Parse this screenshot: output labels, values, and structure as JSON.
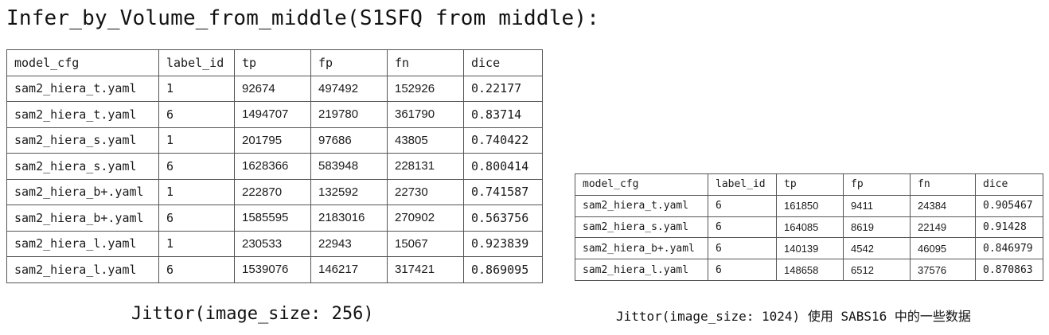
{
  "title": "Infer_by_Volume_from_middle(S1SFQ from middle):",
  "left_table": {
    "headers": [
      "model_cfg",
      "label_id",
      "tp",
      "fp",
      "fn",
      "dice"
    ],
    "rows": [
      [
        "sam2_hiera_t.yaml",
        "1",
        "92674",
        "497492",
        "152926",
        "0.22177"
      ],
      [
        "sam2_hiera_t.yaml",
        "6",
        "1494707",
        "219780",
        "361790",
        "0.83714"
      ],
      [
        "sam2_hiera_s.yaml",
        "1",
        "201795",
        "97686",
        "43805",
        "0.740422"
      ],
      [
        "sam2_hiera_s.yaml",
        "6",
        "1628366",
        "583948",
        "228131",
        "0.800414"
      ],
      [
        "sam2_hiera_b+.yaml",
        "1",
        "222870",
        "132592",
        "22730",
        "0.741587"
      ],
      [
        "sam2_hiera_b+.yaml",
        "6",
        "1585595",
        "2183016",
        "270902",
        "0.563756"
      ],
      [
        "sam2_hiera_l.yaml",
        "1",
        "230533",
        "22943",
        "15067",
        "0.923839"
      ],
      [
        "sam2_hiera_l.yaml",
        "6",
        "1539076",
        "146217",
        "317421",
        "0.869095"
      ]
    ]
  },
  "left_caption": "Jittor(image_size: 256)",
  "right_table": {
    "headers": [
      "model_cfg",
      "label_id",
      "tp",
      "fp",
      "fn",
      "dice"
    ],
    "rows": [
      [
        "sam2_hiera_t.yaml",
        "6",
        "161850",
        "9411",
        "24384",
        "0.905467"
      ],
      [
        "sam2_hiera_s.yaml",
        "6",
        "164085",
        "8619",
        "22149",
        "0.91428"
      ],
      [
        "sam2_hiera_b+.yaml",
        "6",
        "140139",
        "4542",
        "46095",
        "0.846979"
      ],
      [
        "sam2_hiera_l.yaml",
        "6",
        "148658",
        "6512",
        "37576",
        "0.870863"
      ]
    ]
  },
  "right_caption": "Jittor(image_size: 1024) 使用 SABS16 中的一些数据"
}
